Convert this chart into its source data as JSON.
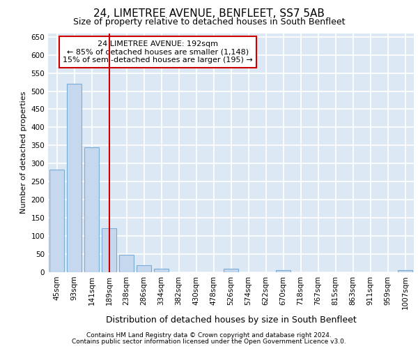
{
  "title1": "24, LIMETREE AVENUE, BENFLEET, SS7 5AB",
  "title2": "Size of property relative to detached houses in South Benfleet",
  "xlabel": "Distribution of detached houses by size in South Benfleet",
  "ylabel": "Number of detached properties",
  "footer1": "Contains HM Land Registry data © Crown copyright and database right 2024.",
  "footer2": "Contains public sector information licensed under the Open Government Licence v3.0.",
  "annotation_line1": "24 LIMETREE AVENUE: 192sqm",
  "annotation_line2": "← 85% of detached houses are smaller (1,148)",
  "annotation_line3": "15% of semi-detached houses are larger (195) →",
  "bin_labels": [
    "45sqm",
    "93sqm",
    "141sqm",
    "189sqm",
    "238sqm",
    "286sqm",
    "334sqm",
    "382sqm",
    "430sqm",
    "478sqm",
    "526sqm",
    "574sqm",
    "622sqm",
    "670sqm",
    "718sqm",
    "767sqm",
    "815sqm",
    "863sqm",
    "911sqm",
    "959sqm",
    "1007sqm"
  ],
  "bar_values": [
    284,
    520,
    345,
    122,
    48,
    20,
    10,
    0,
    0,
    0,
    10,
    0,
    0,
    5,
    0,
    0,
    0,
    0,
    0,
    0,
    5
  ],
  "bar_color": "#c5d8ed",
  "bar_edge_color": "#7aadd4",
  "red_line_x": 3.0,
  "ylim": [
    0,
    660
  ],
  "yticks": [
    0,
    50,
    100,
    150,
    200,
    250,
    300,
    350,
    400,
    450,
    500,
    550,
    600,
    650
  ],
  "bg_color": "#dce9f5",
  "grid_color": "#ffffff",
  "red_color": "#cc0000",
  "title1_fontsize": 11,
  "title2_fontsize": 9,
  "ylabel_fontsize": 8,
  "xlabel_fontsize": 9,
  "footer_fontsize": 6.5,
  "annotation_fontsize": 8,
  "tick_fontsize": 7.5
}
